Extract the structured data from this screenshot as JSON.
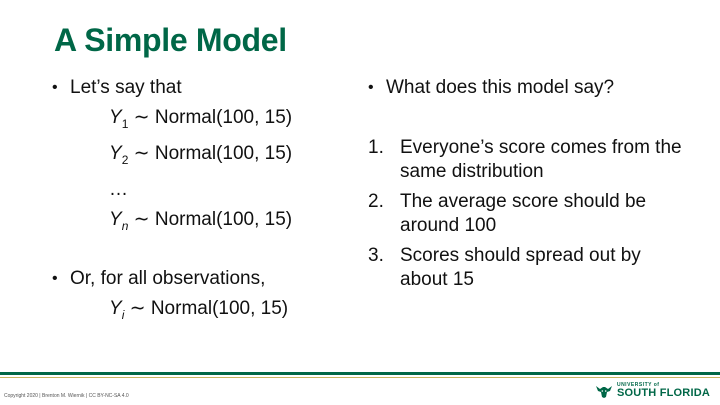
{
  "slide": {
    "title": "A Simple Model"
  },
  "left": {
    "bullet1": "Let’s say that",
    "eq1": {
      "var": "Y",
      "sub": "1",
      "rest": " ∼ Normal(100, 15)"
    },
    "eq2": {
      "var": "Y",
      "sub": "2",
      "rest": " ∼ Normal(100, 15)"
    },
    "ellipsis": "…",
    "eq3": {
      "var": "Y",
      "sub": "n",
      "rest": " ∼ Normal(100, 15)"
    },
    "bullet2": "Or, for all observations,",
    "eq4": {
      "var": "Y",
      "sub": "i",
      "rest": " ∼ Normal(100, 15)"
    }
  },
  "right": {
    "bullet": "What does this model say?",
    "items": [
      {
        "num": "1.",
        "text": "Everyone’s score comes from the same distribution"
      },
      {
        "num": "2.",
        "text": "The average score should be around 100"
      },
      {
        "num": "3.",
        "text": "Scores should spread out by about 15"
      }
    ]
  },
  "footer": {
    "copyright": "Copyright 2020 | Brenton M. Wiernik | CC BY-NC-SA 4.0",
    "logo_small": "UNIVERSITY of",
    "logo_big": "SOUTH FLORIDA",
    "brand_color": "#006747",
    "accent_color": "#c8b560"
  }
}
